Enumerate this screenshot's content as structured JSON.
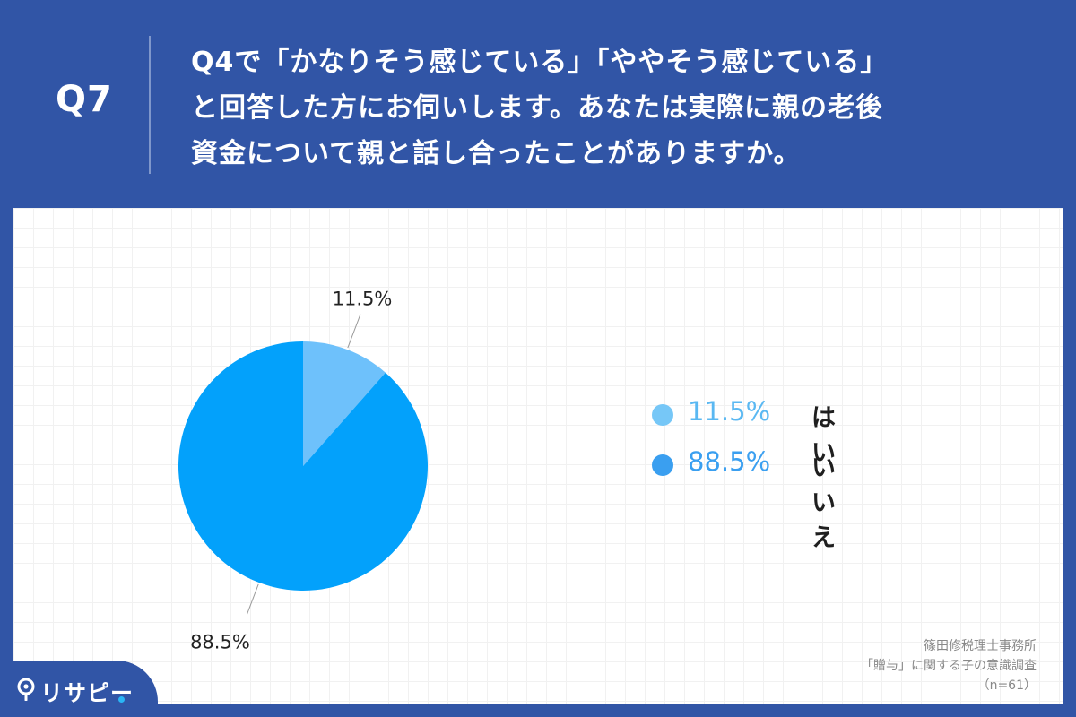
{
  "header": {
    "question_number": "Q7",
    "question_lines": [
      "Q4で「かなりそう感じている」「ややそう感じている」",
      "と回答した方にお伺いします。あなたは実際に親の老後",
      "資金について親と話し合ったことがありますか。"
    ]
  },
  "chart_data": {
    "type": "pie",
    "slices": [
      {
        "name": "はい",
        "value": 11.5,
        "label": "11.5%",
        "color": "#6ec1fb"
      },
      {
        "name": "いいえ",
        "value": 88.5,
        "label": "88.5%",
        "color": "#03a1fb"
      }
    ],
    "legend": [
      {
        "pct": "11.5%",
        "name": "はい",
        "dot_color": "#76c7f7",
        "text_color": "#5ab8f2"
      },
      {
        "pct": "88.5%",
        "name": "いいえ",
        "dot_color": "#3a9ff0",
        "text_color": "#3a9ff0"
      }
    ],
    "legend_position": "right"
  },
  "source": {
    "lines": [
      "篠田修税理士事務所",
      "「贈与」に関する子の意識調査",
      "（n=61）"
    ]
  },
  "logo": {
    "text": "リサピー",
    "icon": "map-pin-icon"
  }
}
